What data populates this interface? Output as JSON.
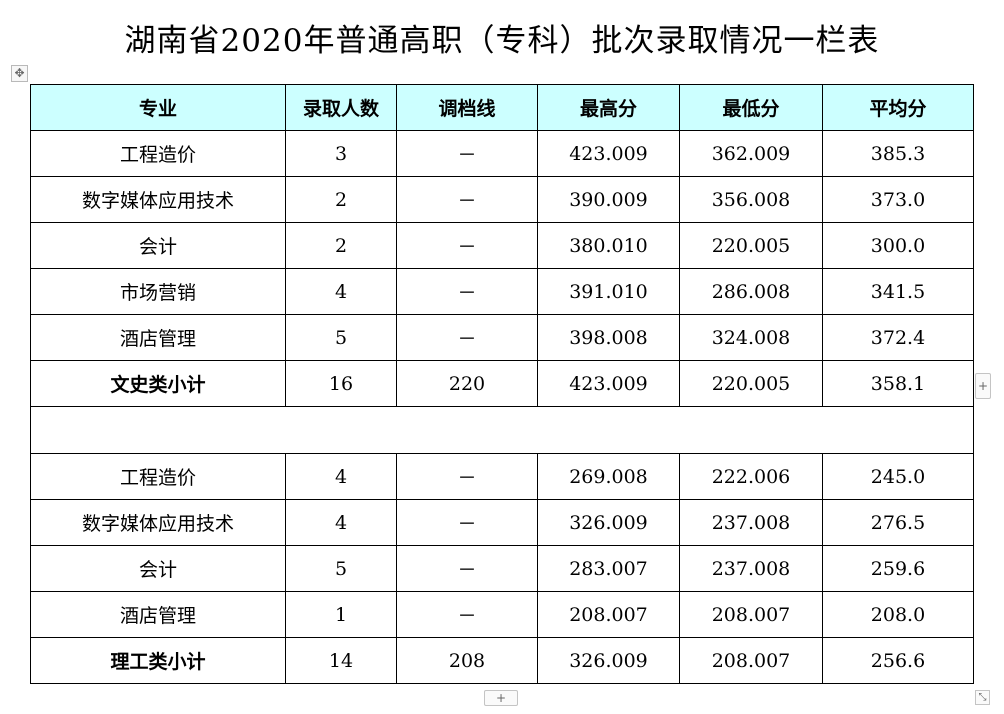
{
  "title": "湖南省2020年普通高职（专科）批次录取情况一栏表",
  "icons": {
    "move": "move-arrows-icon",
    "add_row": "plus-icon",
    "add_col": "plus-icon",
    "resize": "resize-corner-icon"
  },
  "colors": {
    "header_bg": "#ccffff",
    "border": "#000000"
  },
  "table": {
    "headers": [
      "专业",
      "录取人数",
      "调档线",
      "最高分",
      "最低分",
      "平均分"
    ],
    "group1": [
      [
        "工程造价",
        "3",
        "－",
        "423.009",
        "362.009",
        "385.3"
      ],
      [
        "数字媒体应用技术",
        "2",
        "－",
        "390.009",
        "356.008",
        "373.0"
      ],
      [
        "会计",
        "2",
        "－",
        "380.010",
        "220.005",
        "300.0"
      ],
      [
        "市场营销",
        "4",
        "－",
        "391.010",
        "286.008",
        "341.5"
      ],
      [
        "酒店管理",
        "5",
        "－",
        "398.008",
        "324.008",
        "372.4"
      ]
    ],
    "subtotal1": [
      "文史类小计",
      "16",
      "220",
      "423.009",
      "220.005",
      "358.1"
    ],
    "group2": [
      [
        "工程造价",
        "4",
        "－",
        "269.008",
        "222.006",
        "245.0"
      ],
      [
        "数字媒体应用技术",
        "4",
        "－",
        "326.009",
        "237.008",
        "276.5"
      ],
      [
        "会计",
        "5",
        "－",
        "283.007",
        "237.008",
        "259.6"
      ],
      [
        "酒店管理",
        "1",
        "－",
        "208.007",
        "208.007",
        "208.0"
      ]
    ],
    "subtotal2": [
      "理工类小计",
      "14",
      "208",
      "326.009",
      "208.007",
      "256.6"
    ]
  },
  "controls": {
    "move_glyph": "✥",
    "add_glyph": "+",
    "resize_glyph": "⤡"
  }
}
